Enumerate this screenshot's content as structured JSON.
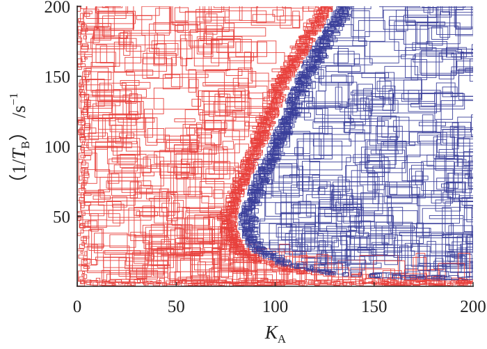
{
  "chart_data": {
    "type": "scatter",
    "mark": "rectangles",
    "title": "",
    "xlabel": {
      "main": "K",
      "sub": "A"
    },
    "ylabel": {
      "open": "（1/",
      "main": "T",
      "sub": "B",
      "close": "）",
      "unit": "/s",
      "sup": "−1"
    },
    "xlim": [
      0,
      200
    ],
    "ylim": [
      0,
      200
    ],
    "xticks": [
      0,
      50,
      100,
      150,
      200
    ],
    "yticks": [
      50,
      100,
      150,
      200
    ],
    "xtick_labels": [
      "0",
      "50",
      "100",
      "150",
      "200"
    ],
    "ytick_labels": [
      "50",
      "100",
      "150",
      "200"
    ],
    "grid": false,
    "legend": "none",
    "series": [
      {
        "color": "#e8413c",
        "region": "left of boundary",
        "boundary": [
          [
            131,
            200
          ],
          [
            110,
            150
          ],
          [
            96,
            100
          ],
          [
            86,
            70
          ],
          [
            81,
            50
          ],
          [
            81,
            40
          ],
          [
            86,
            25
          ],
          [
            100,
            15
          ],
          [
            125,
            8
          ],
          [
            160,
            5
          ],
          [
            200,
            4
          ]
        ]
      },
      {
        "color": "#3a3f9a",
        "region": "right of boundary",
        "boundary": [
          [
            131,
            200
          ],
          [
            110,
            150
          ],
          [
            96,
            100
          ],
          [
            86,
            70
          ],
          [
            81,
            50
          ],
          [
            81,
            40
          ],
          [
            86,
            25
          ],
          [
            100,
            15
          ],
          [
            125,
            8
          ],
          [
            160,
            5
          ],
          [
            200,
            4
          ]
        ]
      }
    ]
  }
}
